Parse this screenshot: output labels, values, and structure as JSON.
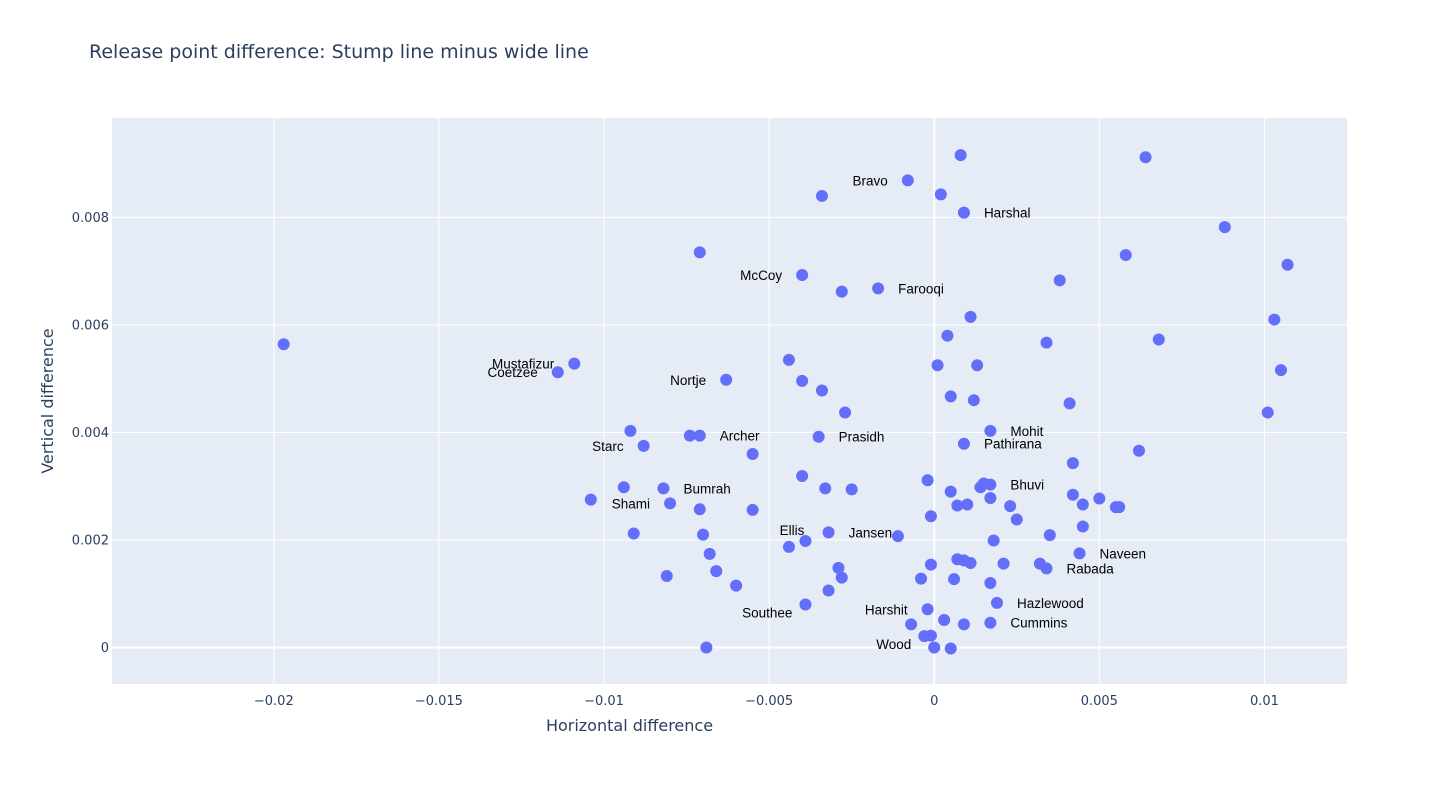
{
  "chart_data": {
    "type": "scatter",
    "title": "Release point difference: Stump line minus wide line",
    "xlabel": "Horizontal difference",
    "ylabel": "Vertical difference",
    "xlim": [
      -0.0249,
      0.0125
    ],
    "ylim": [
      -0.00068,
      0.00985
    ],
    "x_ticks": [
      {
        "value": -0.02,
        "label": "−0.02"
      },
      {
        "value": -0.015,
        "label": "−0.015"
      },
      {
        "value": -0.01,
        "label": "−0.01"
      },
      {
        "value": -0.005,
        "label": "−0.005"
      },
      {
        "value": 0,
        "label": "0"
      },
      {
        "value": 0.005,
        "label": "0.005"
      },
      {
        "value": 0.01,
        "label": "0.01"
      }
    ],
    "y_ticks": [
      {
        "value": 0,
        "label": "0"
      },
      {
        "value": 0.002,
        "label": "0.002"
      },
      {
        "value": 0.004,
        "label": "0.004"
      },
      {
        "value": 0.006,
        "label": "0.006"
      },
      {
        "value": 0.008,
        "label": "0.008"
      }
    ],
    "grid": true,
    "marker_color": "#636efa",
    "plot_bg": "#e5ecf6",
    "points": [
      {
        "x": -0.0197,
        "y": 0.00564
      },
      {
        "x": -0.0114,
        "y": 0.00512,
        "label": "Coetzee",
        "label_side": "left"
      },
      {
        "x": -0.0109,
        "y": 0.00528,
        "label": "Mustafizur",
        "label_side": "left"
      },
      {
        "x": -0.0104,
        "y": 0.00275
      },
      {
        "x": -0.0092,
        "y": 0.00403
      },
      {
        "x": -0.0091,
        "y": 0.00212
      },
      {
        "x": -0.0088,
        "y": 0.00375,
        "label": "Starc",
        "label_side": "left"
      },
      {
        "x": -0.0094,
        "y": 0.00298
      },
      {
        "x": -0.0082,
        "y": 0.00296,
        "label": "Bumrah",
        "label_side": "right"
      },
      {
        "x": -0.008,
        "y": 0.00268,
        "label": "Shami",
        "label_side": "left"
      },
      {
        "x": -0.0081,
        "y": 0.00133
      },
      {
        "x": -0.0074,
        "y": 0.00394
      },
      {
        "x": -0.0071,
        "y": 0.00394,
        "label": "Archer",
        "label_side": "right"
      },
      {
        "x": -0.0071,
        "y": 0.00735
      },
      {
        "x": -0.0071,
        "y": 0.00257
      },
      {
        "x": -0.007,
        "y": 0.0021
      },
      {
        "x": -0.0068,
        "y": 0.00174
      },
      {
        "x": -0.0066,
        "y": 0.00142
      },
      {
        "x": -0.0069,
        "y": 0.0
      },
      {
        "x": -0.0063,
        "y": 0.00498,
        "label": "Nortje",
        "label_side": "left"
      },
      {
        "x": -0.006,
        "y": 0.00115
      },
      {
        "x": -0.0055,
        "y": 0.0036
      },
      {
        "x": -0.0055,
        "y": 0.00256
      },
      {
        "x": -0.0044,
        "y": 0.00535
      },
      {
        "x": -0.0044,
        "y": 0.00187
      },
      {
        "x": -0.004,
        "y": 0.00693,
        "label": "McCoy",
        "label_side": "left"
      },
      {
        "x": -0.004,
        "y": 0.00496
      },
      {
        "x": -0.004,
        "y": 0.00319
      },
      {
        "x": -0.0039,
        "y": 0.00198,
        "label": "Ellis",
        "label_side": "above-left"
      },
      {
        "x": -0.0039,
        "y": 0.0008,
        "label": "Southee",
        "label_side": "below-left"
      },
      {
        "x": -0.0034,
        "y": 0.0084
      },
      {
        "x": -0.0034,
        "y": 0.00478
      },
      {
        "x": -0.0035,
        "y": 0.00392,
        "label": "Prasidh",
        "label_side": "right"
      },
      {
        "x": -0.0033,
        "y": 0.00296
      },
      {
        "x": -0.0032,
        "y": 0.00214,
        "label": "Jansen",
        "label_side": "right"
      },
      {
        "x": -0.0032,
        "y": 0.00106
      },
      {
        "x": -0.0029,
        "y": 0.00148
      },
      {
        "x": -0.0028,
        "y": 0.00662
      },
      {
        "x": -0.0028,
        "y": 0.0013
      },
      {
        "x": -0.0027,
        "y": 0.00437
      },
      {
        "x": -0.0025,
        "y": 0.00294
      },
      {
        "x": -0.0017,
        "y": 0.00668,
        "label": "Farooqi",
        "label_side": "right"
      },
      {
        "x": -0.0011,
        "y": 0.00207
      },
      {
        "x": -0.0008,
        "y": 0.00869,
        "label": "Bravo",
        "label_side": "left"
      },
      {
        "x": -0.0007,
        "y": 0.00043
      },
      {
        "x": -0.0004,
        "y": 0.00128
      },
      {
        "x": -0.0003,
        "y": 0.00021,
        "label": "Wood",
        "label_side": "below-left"
      },
      {
        "x": -0.0002,
        "y": 0.00311
      },
      {
        "x": -0.0002,
        "y": 0.00071,
        "label": "Harshit",
        "label_side": "left"
      },
      {
        "x": -0.0001,
        "y": 0.00244
      },
      {
        "x": -0.0001,
        "y": 0.00154
      },
      {
        "x": -0.0001,
        "y": 0.00022
      },
      {
        "x": 0.0,
        "y": 0.0
      },
      {
        "x": 0.0001,
        "y": 0.00525
      },
      {
        "x": 0.0002,
        "y": 0.00843
      },
      {
        "x": 0.0003,
        "y": 0.00051
      },
      {
        "x": 0.0004,
        "y": 0.0058
      },
      {
        "x": 0.0005,
        "y": 0.00467
      },
      {
        "x": 0.0005,
        "y": 0.0029
      },
      {
        "x": 0.0005,
        "y": -2e-05
      },
      {
        "x": 0.0006,
        "y": 0.00127
      },
      {
        "x": 0.0007,
        "y": 0.00264
      },
      {
        "x": 0.0007,
        "y": 0.00164
      },
      {
        "x": 0.0008,
        "y": 0.00916
      },
      {
        "x": 0.0009,
        "y": 0.00379,
        "label": "Pathirana",
        "label_side": "right"
      },
      {
        "x": 0.0009,
        "y": 0.00162
      },
      {
        "x": 0.0009,
        "y": 0.00043
      },
      {
        "x": 0.0009,
        "y": 0.00809,
        "label": "Harshal",
        "label_side": "right"
      },
      {
        "x": 0.001,
        "y": 0.00266
      },
      {
        "x": 0.0011,
        "y": 0.00157
      },
      {
        "x": 0.0011,
        "y": 0.00615
      },
      {
        "x": 0.0012,
        "y": 0.0046
      },
      {
        "x": 0.0013,
        "y": 0.00525
      },
      {
        "x": 0.0014,
        "y": 0.00298
      },
      {
        "x": 0.0015,
        "y": 0.00305
      },
      {
        "x": 0.0017,
        "y": 0.00303,
        "label": "Bhuvi",
        "label_side": "right"
      },
      {
        "x": 0.0017,
        "y": 0.00403,
        "label": "Mohit",
        "label_side": "right"
      },
      {
        "x": 0.0017,
        "y": 0.00278
      },
      {
        "x": 0.0017,
        "y": 0.0012
      },
      {
        "x": 0.0017,
        "y": 0.00046,
        "label": "Cummins",
        "label_side": "right"
      },
      {
        "x": 0.0018,
        "y": 0.00199
      },
      {
        "x": 0.0019,
        "y": 0.00083,
        "label": "Hazlewood",
        "label_side": "right"
      },
      {
        "x": 0.0021,
        "y": 0.00156
      },
      {
        "x": 0.0023,
        "y": 0.00263
      },
      {
        "x": 0.0025,
        "y": 0.00238
      },
      {
        "x": 0.0032,
        "y": 0.00156
      },
      {
        "x": 0.0034,
        "y": 0.00147,
        "label": "Rabada",
        "label_side": "right"
      },
      {
        "x": 0.0034,
        "y": 0.00567
      },
      {
        "x": 0.0035,
        "y": 0.00209
      },
      {
        "x": 0.0038,
        "y": 0.00683
      },
      {
        "x": 0.0041,
        "y": 0.00454
      },
      {
        "x": 0.0042,
        "y": 0.00343
      },
      {
        "x": 0.0042,
        "y": 0.00284
      },
      {
        "x": 0.0044,
        "y": 0.00175,
        "label": "Naveen",
        "label_side": "right"
      },
      {
        "x": 0.0045,
        "y": 0.00225
      },
      {
        "x": 0.0045,
        "y": 0.00266
      },
      {
        "x": 0.005,
        "y": 0.00277
      },
      {
        "x": 0.0055,
        "y": 0.00261
      },
      {
        "x": 0.0056,
        "y": 0.00261
      },
      {
        "x": 0.0058,
        "y": 0.0073
      },
      {
        "x": 0.0062,
        "y": 0.00366
      },
      {
        "x": 0.0064,
        "y": 0.00912
      },
      {
        "x": 0.0068,
        "y": 0.00573
      },
      {
        "x": 0.0088,
        "y": 0.00782
      },
      {
        "x": 0.0101,
        "y": 0.00437
      },
      {
        "x": 0.0103,
        "y": 0.0061
      },
      {
        "x": 0.0105,
        "y": 0.00516
      },
      {
        "x": 0.0107,
        "y": 0.00712
      }
    ]
  }
}
